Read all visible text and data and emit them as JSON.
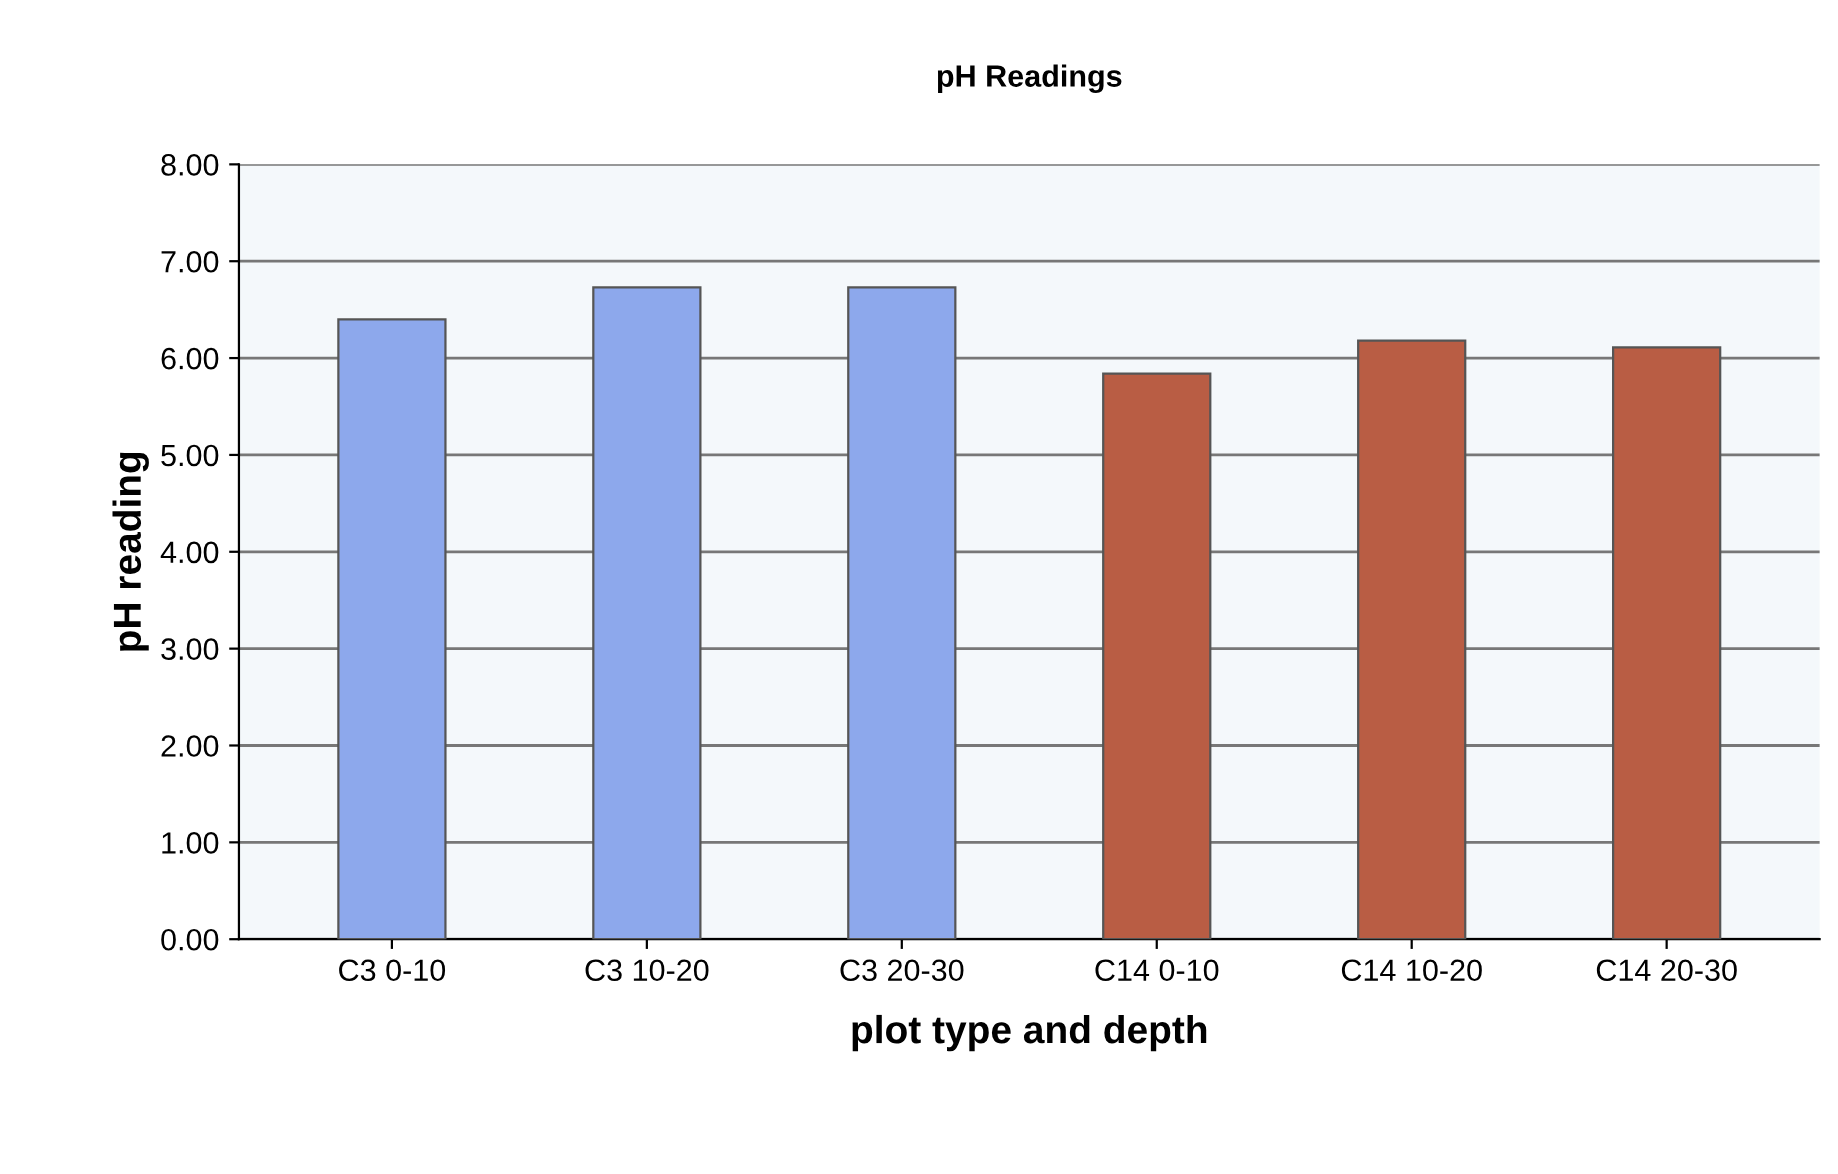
{
  "chart_data": {
    "type": "bar",
    "title": "pH Readings",
    "xlabel": "plot type and depth",
    "ylabel": "pH reading",
    "categories": [
      "C3 0-10",
      "C3 10-20",
      "C3 20-30",
      "C14 0-10",
      "C14 10-20",
      "C14 20-30"
    ],
    "values": [
      6.4,
      6.73,
      6.73,
      5.84,
      6.18,
      6.11
    ],
    "colors": [
      "#8da8ec",
      "#8da8ec",
      "#8da8ec",
      "#b95d44",
      "#b95d44",
      "#b95d44"
    ],
    "ylim": [
      0,
      8
    ],
    "yticks": [
      {
        "value": 0,
        "label": "0.00"
      },
      {
        "value": 1,
        "label": "1.00"
      },
      {
        "value": 2,
        "label": "2.00"
      },
      {
        "value": 3,
        "label": "3.00"
      },
      {
        "value": 4,
        "label": "4.00"
      },
      {
        "value": 5,
        "label": "5.00"
      },
      {
        "value": 6,
        "label": "6.00"
      },
      {
        "value": 7,
        "label": "7.00"
      },
      {
        "value": 8,
        "label": "8.00"
      }
    ],
    "grid": "y",
    "legend": false
  }
}
